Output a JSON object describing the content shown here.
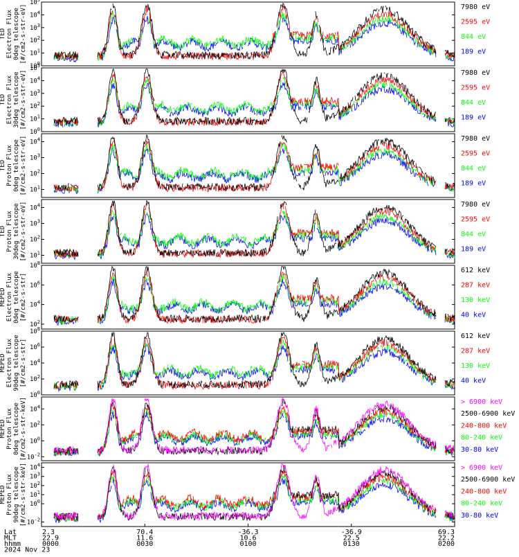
{
  "colors": {
    "black": "#000000",
    "red": "#ff0000",
    "green": "#00ff00",
    "blue": "#0000ff",
    "magenta": "#ff00ff"
  },
  "chart_data": [
    {
      "type": "line",
      "ylabel": [
        "TED",
        "Electron Flux",
        "0deg telescope",
        "[#/cm2-s-str-eV]"
      ],
      "yticks": [
        "10^0",
        "10^1",
        "10^2",
        "10^3",
        "10^4",
        "10^5"
      ],
      "y_log_range": [
        0,
        5
      ],
      "series": [
        {
          "name": "7980 eV",
          "color": "black"
        },
        {
          "name": "2595 eV",
          "color": "red"
        },
        {
          "name": "844 eV",
          "color": "green"
        },
        {
          "name": "189 eV",
          "color": "blue"
        }
      ]
    },
    {
      "type": "line",
      "ylabel": [
        "TED",
        "Electron Flux",
        "30deg telescope",
        "[#/cm2-s-str-eV]"
      ],
      "yticks": [
        "10^0",
        "10^1",
        "10^2",
        "10^3",
        "10^4",
        "10^5"
      ],
      "y_log_range": [
        0,
        5
      ],
      "series": [
        {
          "name": "7980 eV",
          "color": "black"
        },
        {
          "name": "2595 eV",
          "color": "red"
        },
        {
          "name": "844 eV",
          "color": "green"
        },
        {
          "name": "189 eV",
          "color": "blue"
        }
      ]
    },
    {
      "type": "line",
      "ylabel": [
        "TED",
        "Proton Flux",
        "0deg telescope",
        "[#/cm2-s-str-eV]"
      ],
      "yticks": [
        "10^1",
        "10^2",
        "10^3",
        "10^4"
      ],
      "y_log_range": [
        0.5,
        4.5
      ],
      "series": [
        {
          "name": "7980 eV",
          "color": "black"
        },
        {
          "name": "2595 eV",
          "color": "red"
        },
        {
          "name": "844 eV",
          "color": "green"
        },
        {
          "name": "189 eV",
          "color": "blue"
        }
      ]
    },
    {
      "type": "line",
      "ylabel": [
        "TED",
        "Proton Flux",
        "30deg telescope",
        "[#/cm2-s-str-eV]"
      ],
      "yticks": [
        "10^1",
        "10^2",
        "10^3",
        "10^4"
      ],
      "y_log_range": [
        0.5,
        4.5
      ],
      "series": [
        {
          "name": "7980 eV",
          "color": "black"
        },
        {
          "name": "2595 eV",
          "color": "red"
        },
        {
          "name": "844 eV",
          "color": "green"
        },
        {
          "name": "189 eV",
          "color": "blue"
        }
      ]
    },
    {
      "type": "line",
      "ylabel": [
        "MEPED",
        "Electron Flux",
        "0deg telescope",
        "[#/cm2-s-str]"
      ],
      "yticks": [
        "10^2",
        "10^4",
        "10^6",
        "10^8"
      ],
      "y_log_range": [
        1.5,
        8
      ],
      "series": [
        {
          "name": "612 keV",
          "color": "black"
        },
        {
          "name": "287 keV",
          "color": "red"
        },
        {
          "name": "130 keV",
          "color": "green"
        },
        {
          "name": "40 keV",
          "color": "blue"
        }
      ]
    },
    {
      "type": "line",
      "ylabel": [
        "MEPED",
        "Electron Flux",
        "90deg telescope",
        "[#/cm2-s-str]"
      ],
      "yticks": [
        "10^0",
        "10^2",
        "10^4",
        "10^6",
        "10^8"
      ],
      "y_log_range": [
        0,
        8
      ],
      "series": [
        {
          "name": "612 keV",
          "color": "black"
        },
        {
          "name": "287 keV",
          "color": "red"
        },
        {
          "name": "130 keV",
          "color": "green"
        },
        {
          "name": "40 keV",
          "color": "blue"
        }
      ]
    },
    {
      "type": "line",
      "ylabel": [
        "MEPED",
        "Proton Flux",
        "0deg telescope",
        "[#/cm2-s-str-keV]"
      ],
      "yticks": [
        "10^-2",
        "10^0",
        "10^2",
        "10^4"
      ],
      "y_log_range": [
        -2.5,
        5.5
      ],
      "series": [
        {
          "name": "> 6900 keV",
          "color": "magenta"
        },
        {
          "name": "2500-6900 keV",
          "color": "black"
        },
        {
          "name": "240-800 keV",
          "color": "red"
        },
        {
          "name": "80-240 keV",
          "color": "green"
        },
        {
          "name": "30-80 keV",
          "color": "blue"
        }
      ]
    },
    {
      "type": "line",
      "ylabel": [
        "MEPED",
        "Proton Flux",
        "90deg telescope",
        "[#/cm2-s-str-keV]"
      ],
      "yticks": [
        "10^-2",
        "10^0",
        "10^1",
        "10^2",
        "10^3",
        "10^4"
      ],
      "y_log_range": [
        -2.5,
        4.5
      ],
      "series": [
        {
          "name": "> 6900 keV",
          "color": "magenta"
        },
        {
          "name": "2500-6900 keV",
          "color": "black"
        },
        {
          "name": "240-800 keV",
          "color": "red"
        },
        {
          "name": "80-240 keV",
          "color": "green"
        },
        {
          "name": "30-80 keV",
          "color": "blue"
        }
      ]
    }
  ],
  "x_axis": {
    "row_labels": [
      "Lat",
      "MLT",
      "hhmm",
      "2024 Nov 23"
    ],
    "ticks": [
      {
        "lat": "2.3",
        "mlt": "22.9",
        "time": "0000"
      },
      {
        "lat": "70.4",
        "mlt": "11.6",
        "time": "0030"
      },
      {
        "lat": "-36.3",
        "mlt": "10.6",
        "time": "0100"
      },
      {
        "lat": "-36.9",
        "mlt": "22.5",
        "time": "0130"
      },
      {
        "lat": "69.3",
        "mlt": "22.2",
        "time": "0200"
      }
    ]
  }
}
